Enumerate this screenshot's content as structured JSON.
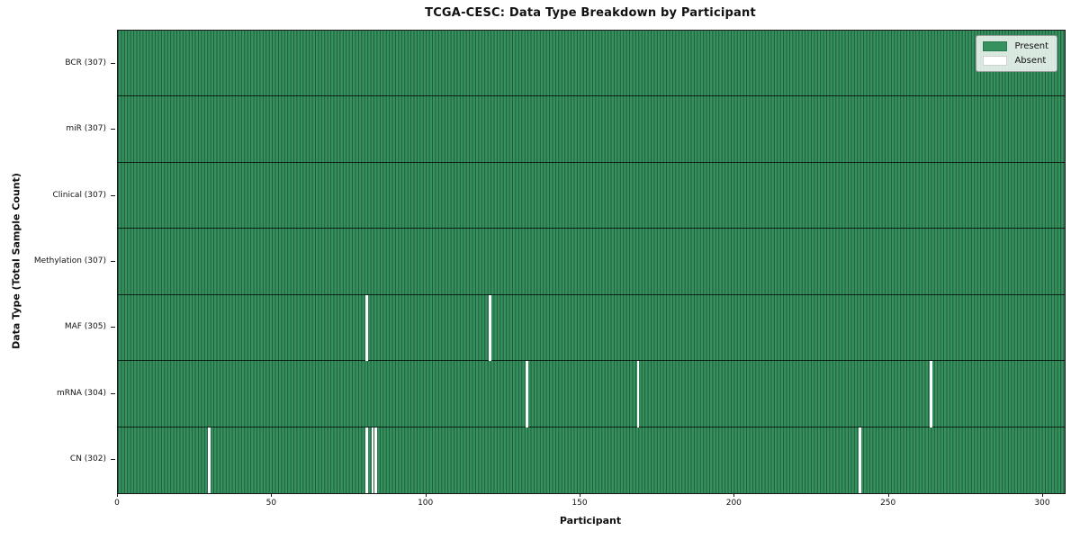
{
  "chart_data": {
    "type": "heatmap",
    "title": "TCGA-CESC: Data Type Breakdown by Participant",
    "xlabel": "Participant",
    "ylabel": "Data Type (Total Sample Count)",
    "x_ticks": [
      0,
      50,
      100,
      150,
      200,
      250,
      300
    ],
    "x_range": [
      0,
      307
    ],
    "n_participants": 307,
    "rows": [
      {
        "data_type": "BCR",
        "label": "BCR (307)",
        "present_count": 307,
        "absent_participants": []
      },
      {
        "data_type": "miR",
        "label": "miR (307)",
        "present_count": 307,
        "absent_participants": []
      },
      {
        "data_type": "Clinical",
        "label": "Clinical (307)",
        "present_count": 307,
        "absent_participants": []
      },
      {
        "data_type": "Methylation",
        "label": "Methylation (307)",
        "present_count": 307,
        "absent_participants": []
      },
      {
        "data_type": "MAF",
        "label": "MAF (305)",
        "present_count": 305,
        "absent_participants": [
          80,
          120
        ]
      },
      {
        "data_type": "mRNA",
        "label": "mRNA (304)",
        "present_count": 304,
        "absent_participants": [
          132,
          168,
          263
        ]
      },
      {
        "data_type": "CN",
        "label": "CN (302)",
        "present_count": 302,
        "absent_participants": [
          29,
          80,
          82,
          83,
          240
        ]
      }
    ],
    "legend": {
      "position": "upper right",
      "items": [
        {
          "label": "Present",
          "color": "#35925f"
        },
        {
          "label": "Absent",
          "color": "#ffffff"
        }
      ]
    },
    "colors": {
      "present": "#35925f",
      "absent": "#ffffff",
      "cell_edge": "rgba(0,0,0,0.38)",
      "row_divider": "rgba(0,0,0,0.75)",
      "frame": "#1a1a1a"
    }
  }
}
